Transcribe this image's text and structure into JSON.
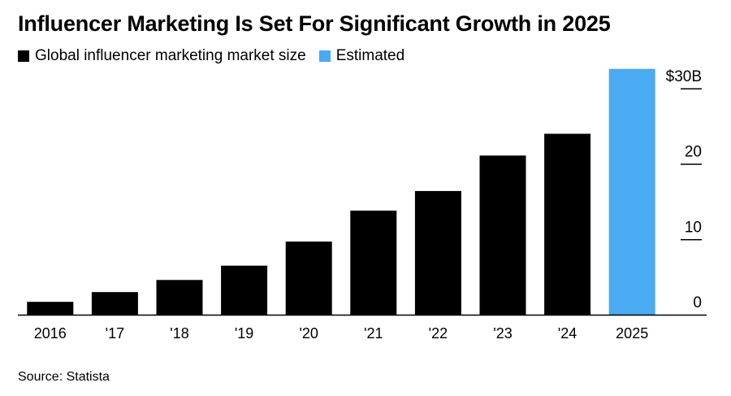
{
  "colors": {
    "actual": "#000000",
    "estimated": "#4aaaf2",
    "axis": "#000000",
    "background": "#ffffff"
  },
  "legend": {
    "actual_label": "Global influencer marketing market size",
    "estimated_label": "Estimated"
  },
  "source_text": "Source: Statista",
  "chart_data": {
    "type": "bar",
    "title": "Influencer Marketing Is Set For Significant Growth in 2025",
    "categories": [
      "2016",
      "'17",
      "'18",
      "'19",
      "'20",
      "'21",
      "'22",
      "'23",
      "'24",
      "2025"
    ],
    "values": [
      1.7,
      3.0,
      4.6,
      6.5,
      9.7,
      13.8,
      16.4,
      21.1,
      24.0,
      32.6
    ],
    "estimated": [
      false,
      false,
      false,
      false,
      false,
      false,
      false,
      false,
      false,
      true
    ],
    "ylim": [
      0,
      33
    ],
    "yticks": [
      0,
      10,
      20,
      30
    ],
    "ytick_labels": [
      "0",
      "10",
      "20",
      "$30B"
    ],
    "xlabel": "",
    "ylabel": "",
    "unit": "billion USD",
    "y_axis_side": "right",
    "legend_position": "top-left"
  }
}
